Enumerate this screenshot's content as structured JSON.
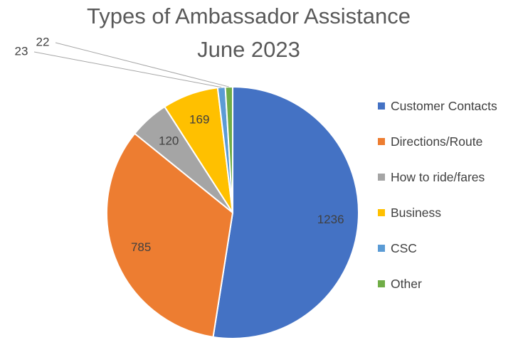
{
  "chart_data": {
    "type": "pie",
    "title": [
      "Types of Ambassador Assistance",
      "June 2023"
    ],
    "legend_position": "right",
    "categories": [
      "Customer Contacts",
      "Directions/Route",
      "How to ride/fares",
      "Business",
      "CSC",
      "Other"
    ],
    "values": [
      1236,
      785,
      120,
      169,
      23,
      22
    ],
    "colors": [
      "#4472C4",
      "#ED7D31",
      "#A5A5A5",
      "#FFC000",
      "#5B9BD5",
      "#70AD47"
    ]
  }
}
